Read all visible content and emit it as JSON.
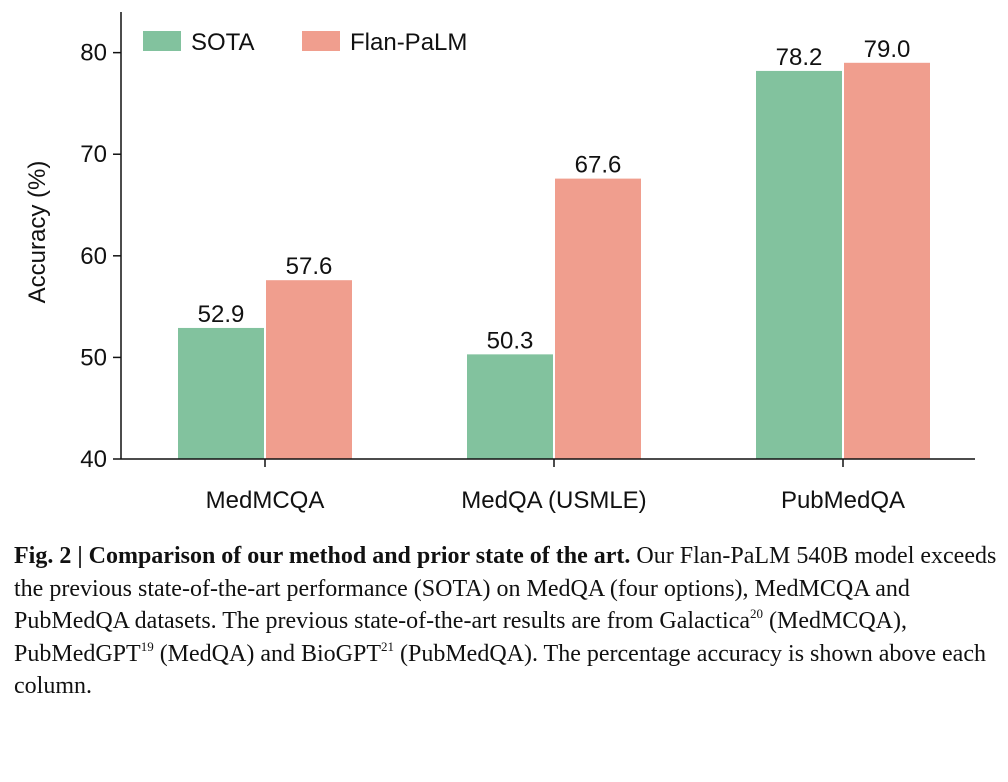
{
  "chart_data": {
    "type": "bar",
    "categories": [
      "MedMCQA",
      "MedQA (USMLE)",
      "PubMedQA"
    ],
    "series": [
      {
        "name": "SOTA",
        "values": [
          52.9,
          50.3,
          78.2
        ],
        "labels": [
          "52.9",
          "50.3",
          "78.2"
        ],
        "color": "#82c29e"
      },
      {
        "name": "Flan-PaLM",
        "values": [
          57.6,
          67.6,
          79.0
        ],
        "labels": [
          "57.6",
          "67.6",
          "79.0"
        ],
        "color": "#f09e8e"
      }
    ],
    "ylabel": "Accuracy (%)",
    "ylim": [
      40,
      84
    ],
    "yticks": [
      40,
      50,
      60,
      70,
      80
    ],
    "grid": false,
    "legend_position": "top-left"
  },
  "caption": {
    "fig_label": "Fig. 2",
    "separator": " | ",
    "title": "Comparison of our method and prior state of the art.",
    "text_1": " Our Flan-PaLM 540B model exceeds the previous state-of-the-art performance (SOTA) on MedQA (four options), MedMCQA and PubMedQA datasets. The previous state-of-the-art results are from Galactica",
    "ref_1": "20",
    "text_2": " (MedMCQA), PubMedGPT",
    "ref_2": "19",
    "text_3": " (MedQA) and BioGPT",
    "ref_3": "21",
    "text_4": " (PubMedQA). The percentage accuracy is shown above each column."
  }
}
